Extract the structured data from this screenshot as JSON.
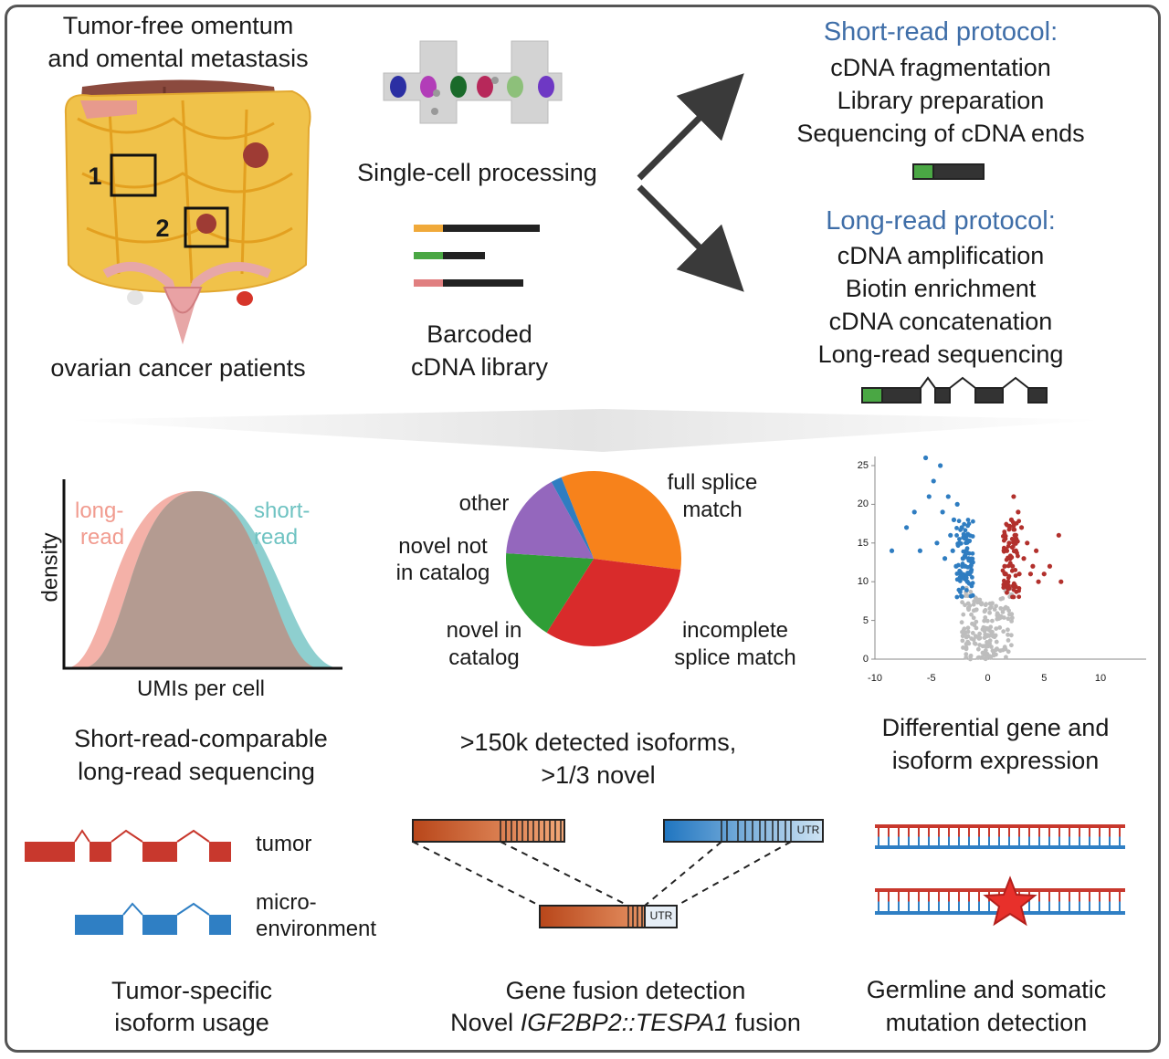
{
  "colors": {
    "frame": "#555555",
    "protocol_heading": "#3f6ea8",
    "long_read_curve": "#f4b1a8",
    "short_read_curve": "#8ecfcf",
    "overlap": "#b49b91",
    "tumor": "#c8382d",
    "microenvironment": "#2f7fc4",
    "fusion_orange": "#c2541a",
    "fusion_blue": "#3a8fd0",
    "volcano_up": "#b2302c",
    "volcano_down": "#2f7dc1",
    "volcano_ns": "#bdbdbd"
  },
  "top_left": {
    "title_line1": "Tumor-free omentum",
    "title_line2": "and omental metastasis",
    "region1": "1",
    "region2": "2",
    "caption": "ovarian cancer patients"
  },
  "top_middle": {
    "processing_label": "Single-cell processing",
    "library_line1": "Barcoded",
    "library_line2": "cDNA library"
  },
  "short_read": {
    "heading": "Short-read protocol:",
    "steps": [
      "cDNA fragmentation",
      "Library preparation",
      "Sequencing of cDNA ends"
    ]
  },
  "long_read": {
    "heading": "Long-read protocol:",
    "steps": [
      "cDNA amplification",
      "Biotin enrichment",
      "cDNA concatenation",
      "Long-read sequencing"
    ]
  },
  "density_panel": {
    "long_label_1": "long-",
    "long_label_2": "read",
    "short_label_1": "short-",
    "short_label_2": "read",
    "ylabel": "density",
    "xlabel": "UMIs per cell",
    "caption_line1": "Short-read-comparable",
    "caption_line2": "long-read sequencing"
  },
  "pie_panel": {
    "caption_line1": ">150k detected isoforms,",
    "caption_line2": ">1/3 novel",
    "label_full_1": "full splice",
    "label_full_2": "match",
    "label_incomplete_1": "incomplete",
    "label_incomplete_2": "splice match",
    "label_nic_1": "novel in",
    "label_nic_2": "catalog",
    "label_nnc_1": "novel not",
    "label_nnc_2": "in catalog",
    "label_other": "other"
  },
  "volcano_panel": {
    "caption_line1": "Differential gene and",
    "caption_line2": "isoform expression",
    "y_ticks": [
      "0",
      "5",
      "10",
      "15",
      "20",
      "25"
    ],
    "x_ticks": [
      "-10",
      "-5",
      "0",
      "5",
      "10"
    ]
  },
  "isoform_panel": {
    "tumor_label": "tumor",
    "micro_label_1": "micro-",
    "micro_label_2": "environment",
    "caption_line1": "Tumor-specific",
    "caption_line2": "isoform usage"
  },
  "fusion_panel": {
    "utr_label": "UTR",
    "caption_line1": "Gene fusion detection",
    "caption_line2_pre": "Novel ",
    "caption_line2_gene": "IGF2BP2::TESPA1",
    "caption_line2_post": " fusion"
  },
  "mutation_panel": {
    "caption_line1": "Germline and somatic",
    "caption_line2": "mutation detection"
  },
  "chart_data": [
    {
      "type": "pie",
      "categories": [
        "full splice match",
        "incomplete splice match",
        "novel in catalog",
        "novel not in catalog",
        "other"
      ],
      "values": [
        33,
        32,
        17,
        16,
        2
      ],
      "colors": [
        "#f7821b",
        "#d92b2b",
        "#2f9e36",
        "#9467bd",
        "#2f7dc1"
      ]
    },
    {
      "type": "scatter",
      "xlim": [
        -10,
        10
      ],
      "ylim": [
        0,
        25
      ],
      "series": [
        {
          "values_x": [
            -8.5,
            -7.2,
            -6.5,
            -6.0,
            -5.5,
            -5.2,
            -4.8,
            -4.5,
            -4.2,
            -4.0,
            -3.8,
            -3.5,
            -3.3,
            -3.1,
            -3.0,
            -2.8,
            -2.7,
            -2.5,
            -2.4,
            -2.3,
            -2.2,
            -2.1,
            -2.0,
            -1.9,
            -1.8,
            -1.7,
            -1.6,
            -1.5
          ],
          "values_y": [
            14,
            17,
            19,
            14,
            26,
            21,
            23,
            15,
            25,
            19,
            13,
            21,
            16,
            14,
            18,
            12,
            20,
            15,
            11,
            17,
            13,
            16,
            12,
            14,
            10,
            13,
            11,
            12
          ]
        },
        {
          "values_x": [
            1.5,
            1.6,
            1.7,
            1.8,
            1.9,
            2.0,
            2.1,
            2.2,
            2.3,
            2.4,
            2.5,
            2.7,
            2.8,
            3.0,
            3.2,
            3.5,
            3.8,
            4.0,
            4.3,
            4.5,
            5.0,
            5.5,
            6.3,
            6.5
          ],
          "values_y": [
            12,
            11,
            14,
            10,
            15,
            13,
            18,
            12,
            21,
            16,
            14,
            19,
            11,
            17,
            13,
            15,
            11,
            12,
            14,
            10,
            11,
            12,
            16,
            10
          ]
        }
      ]
    }
  ]
}
